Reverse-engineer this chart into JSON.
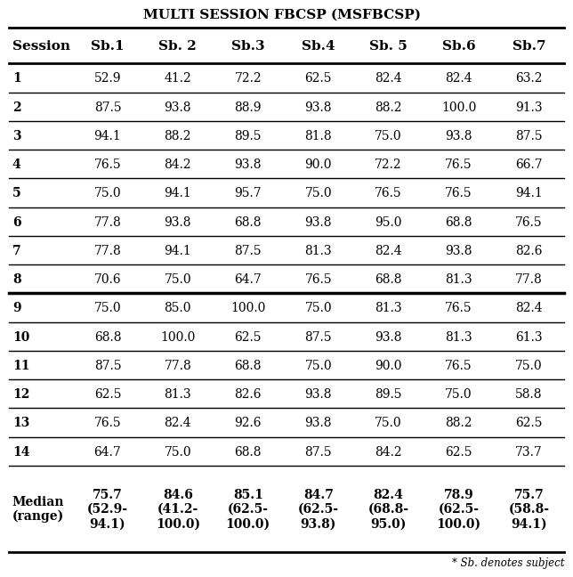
{
  "title": "MULTI SESSION FBCSP (MSFBCSP)",
  "columns": [
    "Session",
    "Sb.1",
    "Sb. 2",
    "Sb.3",
    "Sb.4",
    "Sb. 5",
    "Sb.6",
    "Sb.7"
  ],
  "rows": [
    [
      "1",
      "52.9",
      "41.2",
      "72.2",
      "62.5",
      "82.4",
      "82.4",
      "63.2"
    ],
    [
      "2",
      "87.5",
      "93.8",
      "88.9",
      "93.8",
      "88.2",
      "100.0",
      "91.3"
    ],
    [
      "3",
      "94.1",
      "88.2",
      "89.5",
      "81.8",
      "75.0",
      "93.8",
      "87.5"
    ],
    [
      "4",
      "76.5",
      "84.2",
      "93.8",
      "90.0",
      "72.2",
      "76.5",
      "66.7"
    ],
    [
      "5",
      "75.0",
      "94.1",
      "95.7",
      "75.0",
      "76.5",
      "76.5",
      "94.1"
    ],
    [
      "6",
      "77.8",
      "93.8",
      "68.8",
      "93.8",
      "95.0",
      "68.8",
      "76.5"
    ],
    [
      "7",
      "77.8",
      "94.1",
      "87.5",
      "81.3",
      "82.4",
      "93.8",
      "82.6"
    ],
    [
      "8",
      "70.6",
      "75.0",
      "64.7",
      "76.5",
      "68.8",
      "81.3",
      "77.8"
    ],
    [
      "9",
      "75.0",
      "85.0",
      "100.0",
      "75.0",
      "81.3",
      "76.5",
      "82.4"
    ],
    [
      "10",
      "68.8",
      "100.0",
      "62.5",
      "87.5",
      "93.8",
      "81.3",
      "61.3"
    ],
    [
      "11",
      "87.5",
      "77.8",
      "68.8",
      "75.0",
      "90.0",
      "76.5",
      "75.0"
    ],
    [
      "12",
      "62.5",
      "81.3",
      "82.6",
      "93.8",
      "89.5",
      "75.0",
      "58.8"
    ],
    [
      "13",
      "76.5",
      "82.4",
      "92.6",
      "93.8",
      "75.0",
      "88.2",
      "62.5"
    ],
    [
      "14",
      "64.7",
      "75.0",
      "68.8",
      "87.5",
      "84.2",
      "62.5",
      "73.7"
    ]
  ],
  "median_row": [
    "Median\n(range)",
    "75.7\n(52.9-\n94.1)",
    "84.6\n(41.2-\n100.0)",
    "85.1\n(62.5-\n100.0)",
    "84.7\n(62.5-\n93.8)",
    "82.4\n(68.8-\n95.0)",
    "78.9\n(62.5-\n100.0)",
    "75.7\n(58.8-\n94.1)"
  ],
  "footnote": "* Sb. denotes subject",
  "bg_color": "#ffffff",
  "text_color": "#000000",
  "header_fontsize": 11,
  "body_fontsize": 10,
  "title_fontsize": 11
}
